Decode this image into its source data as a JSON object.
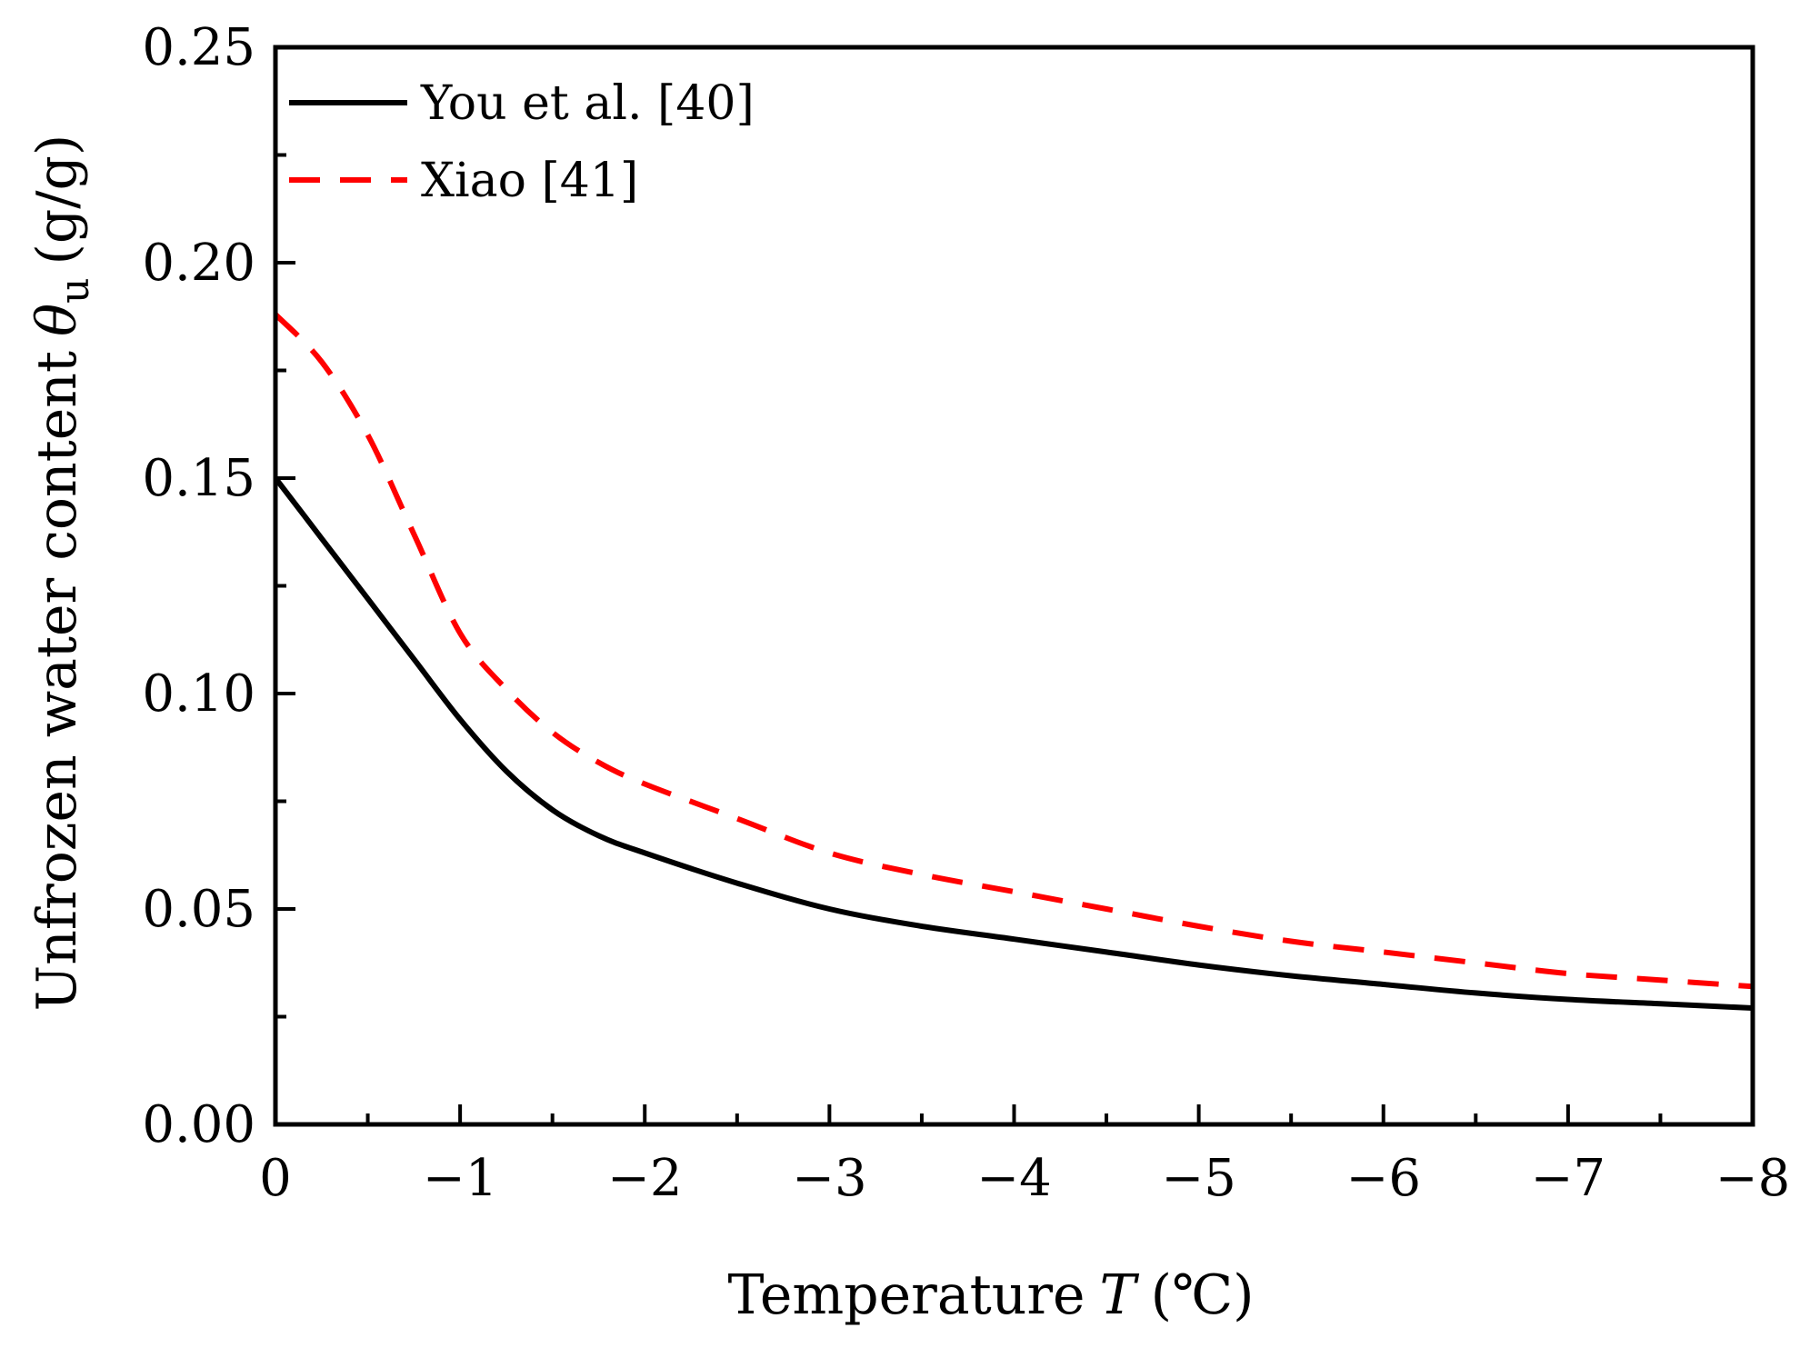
{
  "chart_data": {
    "type": "line",
    "title": "",
    "xlabel": "Temperature",
    "xlabel_symbol": "T",
    "xlabel_unit": "(℃)",
    "ylabel": "Unfrozen water content",
    "ylabel_symbol": "θ",
    "ylabel_subscript": "u",
    "ylabel_unit": "(g/g)",
    "xlim": [
      0,
      -8
    ],
    "ylim": [
      0,
      0.25
    ],
    "xticks": [
      0,
      -1,
      -2,
      -3,
      -4,
      -5,
      -6,
      -7,
      -8
    ],
    "xtick_labels": [
      "0",
      "−1",
      "−2",
      "−3",
      "−4",
      "−5",
      "−6",
      "−7",
      "−8"
    ],
    "yticks": [
      0,
      0.05,
      0.1,
      0.15,
      0.2,
      0.25
    ],
    "ytick_labels": [
      "0.00",
      "0.05",
      "0.10",
      "0.15",
      "0.20",
      "0.25"
    ],
    "legend_position": "top-left",
    "series": [
      {
        "name": "You et al. [40]",
        "color": "#000000",
        "style": "solid",
        "x": [
          0,
          -0.25,
          -0.5,
          -0.75,
          -1.0,
          -1.25,
          -1.5,
          -1.75,
          -2.0,
          -2.5,
          -3.0,
          -3.5,
          -4.0,
          -4.5,
          -5.0,
          -5.5,
          -6.0,
          -6.5,
          -7.0,
          -7.5,
          -8.0
        ],
        "y": [
          0.15,
          0.136,
          0.122,
          0.108,
          0.094,
          0.082,
          0.073,
          0.067,
          0.063,
          0.056,
          0.05,
          0.046,
          0.043,
          0.04,
          0.037,
          0.0345,
          0.0325,
          0.0305,
          0.029,
          0.028,
          0.027
        ]
      },
      {
        "name": "Xiao [41]",
        "color": "#ff0000",
        "style": "dashed",
        "x": [
          0,
          -0.25,
          -0.5,
          -0.75,
          -1.0,
          -1.25,
          -1.5,
          -1.75,
          -2.0,
          -2.5,
          -3.0,
          -3.5,
          -4.0,
          -4.5,
          -5.0,
          -5.5,
          -6.0,
          -6.5,
          -7.0,
          -7.5,
          -8.0
        ],
        "y": [
          0.188,
          0.177,
          0.16,
          0.137,
          0.114,
          0.101,
          0.091,
          0.084,
          0.079,
          0.071,
          0.063,
          0.058,
          0.054,
          0.05,
          0.046,
          0.0425,
          0.04,
          0.0375,
          0.035,
          0.0335,
          0.032
        ]
      }
    ]
  }
}
